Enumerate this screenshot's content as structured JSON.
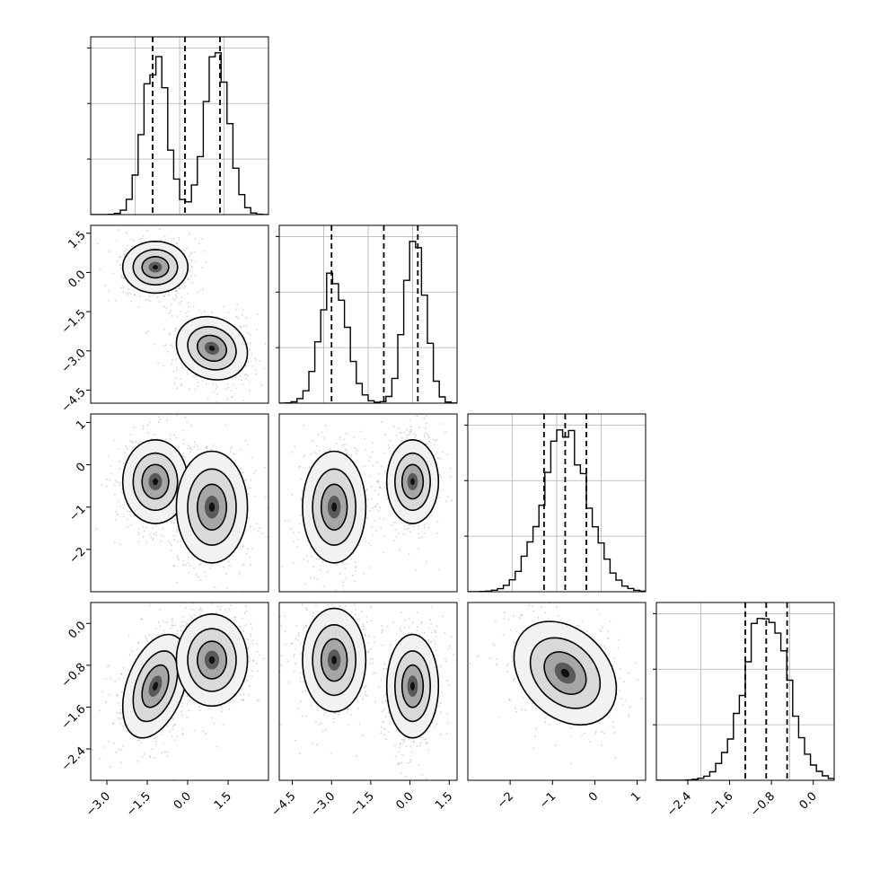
{
  "colors": {
    "frame": "#000000",
    "grid": "#b0b0b0",
    "scatter": "#7f7f7f",
    "contour_line": "#000000",
    "hist": "#000000"
  },
  "chart_data": [
    {
      "panel": "hist-1",
      "type": "histogram",
      "variable": 1,
      "xlim": [
        -3.6,
        3.0
      ],
      "modes": [
        {
          "mu": -1.2,
          "sigma": 0.45,
          "weight": 0.5
        },
        {
          "mu": 1.1,
          "sigma": 0.45,
          "weight": 0.5
        }
      ],
      "quantiles": [
        -1.3,
        -0.1,
        1.2
      ],
      "grid": true
    },
    {
      "panel": "scatter-2-1",
      "type": "scatter",
      "x_variable": 1,
      "y_variable": 2,
      "xlim": [
        -3.6,
        3.0
      ],
      "ylim": [
        -5.0,
        1.8
      ],
      "clusters": [
        {
          "cx": -1.2,
          "cy": 0.2,
          "sx": 0.55,
          "sy": 0.45,
          "rho": 0.0
        },
        {
          "cx": 0.9,
          "cy": -2.9,
          "sx": 0.6,
          "sy": 0.55,
          "rho": -0.15
        }
      ],
      "yticks": [
        "1.5",
        "0.0",
        "−1.5",
        "−3.0",
        "−4.5"
      ],
      "ytick_values": [
        1.5,
        0.0,
        -1.5,
        -3.0,
        -4.5
      ]
    },
    {
      "panel": "hist-2",
      "type": "histogram",
      "variable": 2,
      "xlim": [
        -5.0,
        1.8
      ],
      "modes": [
        {
          "mu": -2.9,
          "sigma": 0.5,
          "weight": 0.5
        },
        {
          "mu": 0.2,
          "sigma": 0.4,
          "weight": 0.5
        }
      ],
      "quantiles": [
        -3.0,
        -1.0,
        0.3
      ],
      "grid": true
    },
    {
      "panel": "scatter-3-1",
      "type": "scatter",
      "x_variable": 1,
      "y_variable": 3,
      "xlim": [
        -3.6,
        3.0
      ],
      "ylim": [
        -3.0,
        1.2
      ],
      "clusters": [
        {
          "cx": -1.2,
          "cy": -0.4,
          "sx": 0.55,
          "sy": 0.45,
          "rho": 0.0
        },
        {
          "cx": 0.9,
          "cy": -1.0,
          "sx": 0.6,
          "sy": 0.6,
          "rho": 0.0
        }
      ],
      "yticks": [
        "1",
        "0",
        "−1",
        "−2"
      ],
      "ytick_values": [
        1,
        0,
        -1,
        -2
      ]
    },
    {
      "panel": "scatter-3-2",
      "type": "scatter",
      "x_variable": 2,
      "y_variable": 3,
      "xlim": [
        -5.0,
        1.8
      ],
      "ylim": [
        -3.0,
        1.2
      ],
      "clusters": [
        {
          "cx": -2.9,
          "cy": -1.0,
          "sx": 0.55,
          "sy": 0.6,
          "rho": 0.0
        },
        {
          "cx": 0.1,
          "cy": -0.4,
          "sx": 0.45,
          "sy": 0.45,
          "rho": 0.0
        }
      ]
    },
    {
      "panel": "hist-3",
      "type": "histogram",
      "variable": 3,
      "xlim": [
        -3.0,
        1.2
      ],
      "modes": [
        {
          "mu": -0.7,
          "sigma": 0.55,
          "weight": 1.0
        }
      ],
      "quantiles": [
        -1.2,
        -0.7,
        -0.2
      ],
      "grid": true
    },
    {
      "panel": "scatter-4-1",
      "type": "scatter",
      "x_variable": 1,
      "y_variable": 4,
      "xlim": [
        -3.6,
        3.0
      ],
      "ylim": [
        -3.0,
        0.4
      ],
      "clusters": [
        {
          "cx": -1.2,
          "cy": -1.2,
          "sx": 0.55,
          "sy": 0.45,
          "rho": 0.4
        },
        {
          "cx": 0.9,
          "cy": -0.7,
          "sx": 0.6,
          "sy": 0.4,
          "rho": 0.0
        }
      ],
      "yticks": [
        "0.0",
        "−0.8",
        "−1.6",
        "−2.4"
      ],
      "ytick_values": [
        0.0,
        -0.8,
        -1.6,
        -2.4
      ],
      "xticks": [
        "−3.0",
        "−1.5",
        "0.0",
        "1.5"
      ],
      "xtick_values": [
        -3.0,
        -1.5,
        0.0,
        1.5
      ]
    },
    {
      "panel": "scatter-4-2",
      "type": "scatter",
      "x_variable": 2,
      "y_variable": 4,
      "xlim": [
        -5.0,
        1.8
      ],
      "ylim": [
        -3.0,
        0.4
      ],
      "clusters": [
        {
          "cx": -2.9,
          "cy": -0.7,
          "sx": 0.55,
          "sy": 0.45,
          "rho": 0.0
        },
        {
          "cx": 0.1,
          "cy": -1.2,
          "sx": 0.45,
          "sy": 0.45,
          "rho": 0.0
        }
      ],
      "xticks": [
        "−4.5",
        "−3.0",
        "−1.5",
        "0.0",
        "1.5"
      ],
      "xtick_values": [
        -4.5,
        -3.0,
        -1.5,
        0.0,
        1.5
      ]
    },
    {
      "panel": "scatter-4-3",
      "type": "scatter",
      "x_variable": 3,
      "y_variable": 4,
      "xlim": [
        -3.0,
        1.2
      ],
      "ylim": [
        -3.0,
        0.4
      ],
      "clusters": [
        {
          "cx": -0.7,
          "cy": -0.95,
          "sx": 0.55,
          "sy": 0.45,
          "rho": -0.3
        }
      ],
      "xticks": [
        "−2",
        "−1",
        "0",
        "1"
      ],
      "xtick_values": [
        -2,
        -1,
        0,
        1
      ]
    },
    {
      "panel": "hist-4",
      "type": "histogram",
      "variable": 4,
      "xlim": [
        -3.0,
        0.4
      ],
      "modes": [
        {
          "mu": -0.9,
          "sigma": 0.42,
          "weight": 1.0
        }
      ],
      "quantiles": [
        -1.3,
        -0.9,
        -0.5
      ],
      "grid": true,
      "xticks": [
        "−2.4",
        "−1.6",
        "−0.8",
        "0.0"
      ],
      "xtick_values": [
        -2.4,
        -1.6,
        -0.8,
        0.0
      ]
    }
  ]
}
